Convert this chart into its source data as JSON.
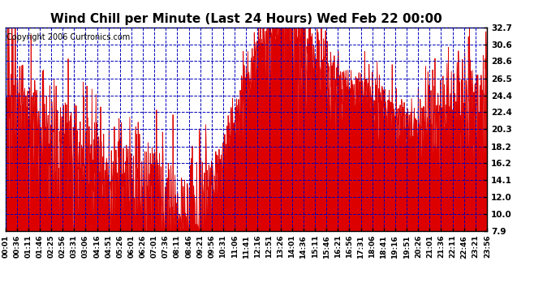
{
  "title": "Wind Chill per Minute (Last 24 Hours) Wed Feb 22 00:00",
  "copyright": "Copyright 2006 Curtronics.com",
  "yticks": [
    7.9,
    10.0,
    12.0,
    14.1,
    16.2,
    18.2,
    20.3,
    22.4,
    24.4,
    26.5,
    28.6,
    30.6,
    32.7
  ],
  "ylim": [
    7.9,
    32.7
  ],
  "xtick_labels": [
    "00:01",
    "00:36",
    "01:11",
    "01:46",
    "02:25",
    "02:56",
    "03:31",
    "03:06",
    "04:16",
    "04:51",
    "05:26",
    "06:01",
    "06:26",
    "07:01",
    "07:36",
    "08:11",
    "08:46",
    "09:21",
    "09:56",
    "10:31",
    "11:06",
    "11:41",
    "12:16",
    "12:51",
    "13:26",
    "14:01",
    "14:36",
    "15:11",
    "15:46",
    "16:21",
    "16:56",
    "17:31",
    "18:06",
    "18:41",
    "19:16",
    "19:51",
    "20:26",
    "21:01",
    "21:36",
    "22:11",
    "22:46",
    "23:21",
    "23:56"
  ],
  "line_color": "#dd0000",
  "fill_color": "#dd0000",
  "bg_color": "#ffffff",
  "plot_bg_color": "#ffffff",
  "grid_color": "#0000bb",
  "title_color": "#000000",
  "border_color": "#000000",
  "title_fontsize": 11,
  "copyright_fontsize": 7,
  "figwidth": 6.9,
  "figheight": 3.75,
  "dpi": 100
}
